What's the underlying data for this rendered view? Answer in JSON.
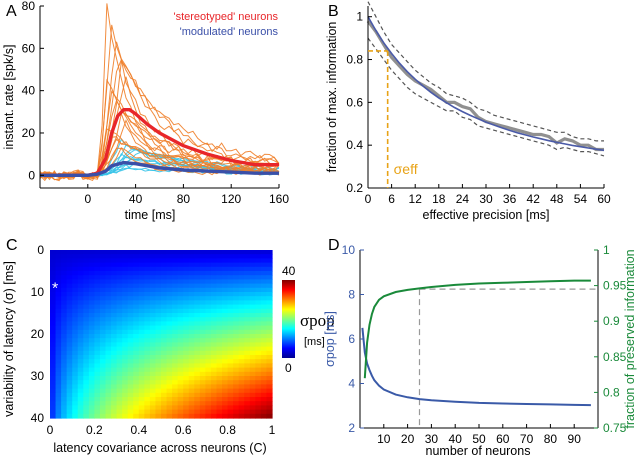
{
  "panels": [
    "A",
    "B",
    "C",
    "D"
  ],
  "chart_data": [
    {
      "id": "A",
      "type": "line",
      "xlabel": "time  [ms]",
      "ylabel": "instant. rate [spk/s]",
      "xlim": [
        -40,
        160
      ],
      "ylim": [
        -6,
        80
      ],
      "xticks": [
        0,
        40,
        80,
        120,
        160
      ],
      "yticks": [
        0,
        20,
        40,
        60,
        80
      ],
      "legend": [
        {
          "label": "'stereotyped' neurons",
          "color": "#e8262a"
        },
        {
          "label": "'modulated' neurons",
          "color": "#3a4fa8"
        }
      ],
      "series": [
        {
          "name": "stereotyped neurons mean",
          "color": "#e8262a",
          "x": [
            -40,
            -20,
            0,
            8,
            15,
            20,
            25,
            30,
            35,
            40,
            50,
            60,
            80,
            100,
            120,
            140,
            160
          ],
          "y": [
            0,
            0,
            0,
            1,
            8,
            20,
            28,
            31,
            31,
            29,
            24,
            20,
            14,
            10,
            7,
            5,
            5
          ]
        },
        {
          "name": "modulated neurons mean",
          "color": "#3a4fa8",
          "x": [
            -40,
            -20,
            0,
            8,
            15,
            20,
            30,
            40,
            50,
            60,
            80,
            100,
            120,
            140,
            160
          ],
          "y": [
            0,
            0,
            0,
            0.5,
            2,
            4.5,
            6,
            5.5,
            4.5,
            3.5,
            2.5,
            2,
            1.5,
            1,
            1
          ]
        }
      ],
      "individual_stereotyped_peaks": [
        75,
        67,
        62,
        55,
        50,
        46,
        42,
        38,
        34,
        30,
        27,
        24,
        21,
        18,
        16,
        14,
        12
      ],
      "individual_modulated_peaks": [
        15,
        13,
        12,
        11,
        10,
        9,
        8,
        7,
        6,
        5,
        4,
        3
      ]
    },
    {
      "id": "B",
      "type": "line",
      "xlabel": "effective precision [ms]",
      "ylabel": "fraction of max. information",
      "xlim": [
        0,
        60
      ],
      "ylim": [
        0.2,
        1.05
      ],
      "xticks": [
        0,
        6,
        12,
        18,
        24,
        30,
        36,
        42,
        48,
        54,
        60
      ],
      "yticks": [
        0.2,
        0.4,
        0.6,
        0.8,
        1
      ],
      "annotation": "σeff",
      "annotation_x": 5,
      "annotation_y": 0.84,
      "series": [
        {
          "name": "mean",
          "color": "#909090",
          "x": [
            0,
            2,
            4,
            6,
            8,
            10,
            12,
            14,
            16,
            18,
            20,
            22,
            24,
            26,
            28,
            30,
            32,
            34,
            36,
            38,
            40,
            42,
            44,
            46,
            48,
            50,
            52,
            54,
            56,
            58,
            60
          ],
          "y": [
            0.98,
            0.93,
            0.87,
            0.81,
            0.77,
            0.73,
            0.7,
            0.68,
            0.66,
            0.63,
            0.6,
            0.6,
            0.58,
            0.57,
            0.53,
            0.51,
            0.5,
            0.49,
            0.48,
            0.47,
            0.46,
            0.45,
            0.45,
            0.44,
            0.41,
            0.43,
            0.42,
            0.4,
            0.4,
            0.38,
            0.38
          ]
        },
        {
          "name": "fit",
          "color": "#4a5aa8",
          "x": [
            0,
            2,
            4,
            6,
            8,
            10,
            12,
            14,
            16,
            18,
            20,
            22,
            24,
            26,
            28,
            30,
            32,
            34,
            36,
            38,
            40,
            42,
            44,
            46,
            48,
            50,
            52,
            54,
            56,
            58,
            60
          ],
          "y": [
            1,
            0.935,
            0.878,
            0.828,
            0.783,
            0.743,
            0.708,
            0.676,
            0.647,
            0.621,
            0.598,
            0.576,
            0.557,
            0.539,
            0.523,
            0.508,
            0.494,
            0.481,
            0.469,
            0.458,
            0.448,
            0.438,
            0.43,
            0.421,
            0.413,
            0.406,
            0.399,
            0.393,
            0.387,
            0.381,
            0.376
          ]
        },
        {
          "name": "upper bound",
          "color": "#555555",
          "dashed": true,
          "x": [
            0,
            2,
            4,
            6,
            8,
            10,
            12,
            14,
            16,
            18,
            20,
            22,
            24,
            26,
            28,
            30,
            32,
            34,
            36,
            38,
            40,
            42,
            44,
            46,
            48,
            50,
            52,
            54,
            56,
            58,
            60
          ],
          "y": [
            1.07,
            1.0,
            0.93,
            0.87,
            0.83,
            0.79,
            0.75,
            0.72,
            0.69,
            0.67,
            0.64,
            0.63,
            0.62,
            0.6,
            0.57,
            0.56,
            0.54,
            0.53,
            0.52,
            0.51,
            0.5,
            0.49,
            0.48,
            0.47,
            0.46,
            0.46,
            0.44,
            0.43,
            0.43,
            0.42,
            0.42
          ]
        },
        {
          "name": "lower bound",
          "color": "#555555",
          "dashed": true,
          "x": [
            0,
            2,
            4,
            6,
            8,
            10,
            12,
            14,
            16,
            18,
            20,
            22,
            24,
            26,
            28,
            30,
            32,
            34,
            36,
            38,
            40,
            42,
            44,
            46,
            48,
            50,
            52,
            54,
            56,
            58,
            60
          ],
          "y": [
            0.9,
            0.85,
            0.8,
            0.75,
            0.71,
            0.67,
            0.64,
            0.62,
            0.6,
            0.58,
            0.56,
            0.56,
            0.53,
            0.52,
            0.49,
            0.48,
            0.47,
            0.46,
            0.45,
            0.44,
            0.43,
            0.42,
            0.41,
            0.4,
            0.38,
            0.39,
            0.38,
            0.37,
            0.37,
            0.36,
            0.35
          ]
        }
      ]
    },
    {
      "id": "C",
      "type": "heatmap",
      "xlabel": "latency covariance across neurons  (C)",
      "ylabel": "variability of latency (σ) [ms]",
      "xlim": [
        0,
        1
      ],
      "ylim": [
        0,
        40
      ],
      "xticks": [
        0,
        0.2,
        0.4,
        0.6,
        0.8,
        1
      ],
      "yticks": [
        0,
        10,
        20,
        30,
        40
      ],
      "colorbar": {
        "label": "σpop",
        "unit": "[ms]",
        "min": 0,
        "max": 40,
        "ticks": [
          0,
          40
        ]
      },
      "marker": {
        "symbol": "*",
        "x": 0,
        "y": 8
      },
      "value_model": "sigma * sqrt(C)"
    },
    {
      "id": "D",
      "type": "line",
      "xlabel": "number of neurons",
      "ylabel_left": "σpop [ms]",
      "ylabel_right": "fraction of preserved information",
      "xlim": [
        0,
        100
      ],
      "xticks": [
        10,
        20,
        30,
        40,
        50,
        60,
        70,
        80,
        90
      ],
      "ylim_left": [
        2,
        10
      ],
      "yticks_left": [
        2,
        4,
        6,
        8,
        10
      ],
      "ylim_right": [
        0.75,
        1
      ],
      "yticks_right": [
        0.75,
        0.8,
        0.85,
        0.9,
        0.95,
        1
      ],
      "reference_x": 25,
      "reference_y_right": 0.945,
      "series": [
        {
          "name": "σpop",
          "axis": "left",
          "color": "#3a5aa8",
          "x": [
            1,
            2,
            3,
            4,
            5,
            6,
            8,
            10,
            15,
            20,
            25,
            30,
            40,
            50,
            60,
            70,
            80,
            90,
            97
          ],
          "y": [
            6.5,
            5.4,
            4.9,
            4.6,
            4.35,
            4.15,
            3.9,
            3.73,
            3.5,
            3.38,
            3.3,
            3.25,
            3.18,
            3.13,
            3.1,
            3.08,
            3.06,
            3.04,
            3.03
          ]
        },
        {
          "name": "fraction of preserved information",
          "axis": "right",
          "color": "#1a8a3a",
          "x": [
            2,
            3,
            4,
            5,
            6,
            8,
            10,
            15,
            20,
            25,
            30,
            40,
            50,
            60,
            70,
            80,
            90,
            97
          ],
          "y": [
            0.82,
            0.87,
            0.895,
            0.91,
            0.92,
            0.93,
            0.935,
            0.941,
            0.944,
            0.946,
            0.948,
            0.951,
            0.953,
            0.954,
            0.955,
            0.956,
            0.957,
            0.957
          ]
        }
      ]
    }
  ]
}
